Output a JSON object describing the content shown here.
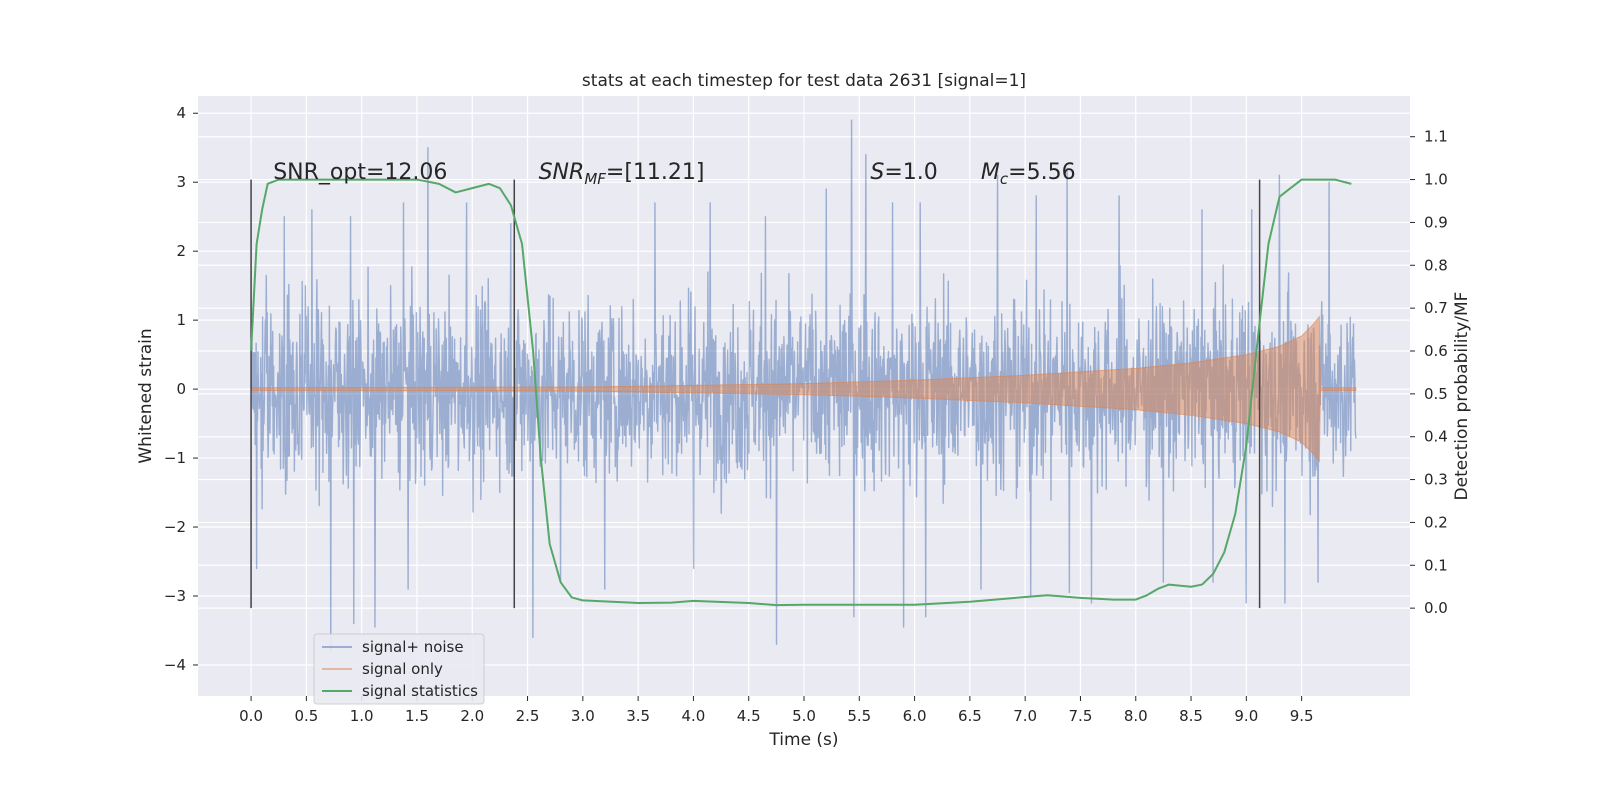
{
  "chart_data": {
    "type": "line",
    "title": "stats at each timestep for test data 2631 [signal=1]",
    "xlabel": "Time (s)",
    "ylabel": "Whitened strain",
    "y2label": "Detection probability/MF",
    "xlim": [
      -0.48,
      10.48
    ],
    "ylim": [
      -4.45,
      4.25
    ],
    "y2lim": [
      -0.205,
      1.195
    ],
    "grid": true,
    "x_ticks": [
      0.0,
      0.5,
      1.0,
      1.5,
      2.0,
      2.5,
      3.0,
      3.5,
      4.0,
      4.5,
      5.0,
      5.5,
      6.0,
      6.5,
      7.0,
      7.5,
      8.0,
      8.5,
      9.0,
      9.5
    ],
    "x_tick_labels": [
      "0.0",
      "0.5",
      "1.0",
      "1.5",
      "2.0",
      "2.5",
      "3.0",
      "3.5",
      "4.0",
      "4.5",
      "5.0",
      "5.5",
      "6.0",
      "6.5",
      "7.0",
      "7.5",
      "8.0",
      "8.5",
      "9.0",
      "9.5"
    ],
    "y_ticks": [
      4,
      3,
      2,
      1,
      0,
      -1,
      -2,
      -3,
      -4
    ],
    "y_tick_labels": [
      "4",
      "3",
      "2",
      "1",
      "0",
      "−1",
      "−2",
      "−3",
      "−4"
    ],
    "y2_ticks": [
      1.1,
      1.0,
      0.9,
      0.8,
      0.7,
      0.6,
      0.5,
      0.4,
      0.3,
      0.2,
      0.1,
      0.0
    ],
    "y2_tick_labels": [
      "1.1",
      "1.0",
      "0.9",
      "0.8",
      "0.7",
      "0.6",
      "0.5",
      "0.4",
      "0.3",
      "0.2",
      "0.1",
      "0.0"
    ],
    "legend_position": "lower-left",
    "series": [
      {
        "name": "signal+ noise",
        "axis": "left",
        "color": "#4c72b0",
        "opacity": 0.5,
        "x_range": [
          0.0,
          9.99
        ],
        "typical_band": [
          -1.9,
          1.9
        ],
        "peaks_high": [
          [
            0.3,
            2.5
          ],
          [
            0.55,
            2.6
          ],
          [
            0.9,
            2.5
          ],
          [
            1.38,
            2.7
          ],
          [
            1.6,
            3.5
          ],
          [
            1.95,
            2.7
          ],
          [
            2.35,
            2.4
          ],
          [
            3.2,
            2.9
          ],
          [
            3.65,
            2.7
          ],
          [
            4.15,
            2.7
          ],
          [
            4.65,
            2.5
          ],
          [
            5.2,
            2.9
          ],
          [
            5.43,
            3.9
          ],
          [
            5.56,
            3.4
          ],
          [
            5.8,
            2.7
          ],
          [
            6.05,
            2.7
          ],
          [
            6.75,
            3.1
          ],
          [
            7.1,
            2.8
          ],
          [
            7.38,
            3.2
          ],
          [
            7.85,
            2.8
          ],
          [
            8.6,
            2.6
          ],
          [
            9.05,
            2.6
          ],
          [
            9.3,
            3.1
          ],
          [
            9.75,
            3.0
          ]
        ],
        "peaks_low": [
          [
            0.05,
            -2.6
          ],
          [
            0.72,
            -3.8
          ],
          [
            0.93,
            -3.4
          ],
          [
            1.12,
            -3.45
          ],
          [
            1.42,
            -2.9
          ],
          [
            2.55,
            -3.6
          ],
          [
            2.8,
            -2.8
          ],
          [
            3.2,
            -2.9
          ],
          [
            4.0,
            -2.6
          ],
          [
            4.75,
            -3.7
          ],
          [
            5.45,
            -3.3
          ],
          [
            5.9,
            -3.45
          ],
          [
            6.1,
            -3.3
          ],
          [
            6.6,
            -2.9
          ],
          [
            7.05,
            -3.0
          ],
          [
            7.4,
            -2.95
          ],
          [
            7.6,
            -3.1
          ],
          [
            8.25,
            -2.8
          ],
          [
            8.7,
            -2.8
          ],
          [
            9.0,
            -3.1
          ],
          [
            9.35,
            -3.1
          ],
          [
            9.65,
            -2.8
          ]
        ]
      },
      {
        "name": "signal only",
        "axis": "left",
        "color": "#dd8452",
        "opacity": 0.5,
        "envelope": [
          [
            0.0,
            0.02
          ],
          [
            3.0,
            0.03
          ],
          [
            5.0,
            0.08
          ],
          [
            6.0,
            0.13
          ],
          [
            7.0,
            0.2
          ],
          [
            8.0,
            0.3
          ],
          [
            8.5,
            0.38
          ],
          [
            9.0,
            0.5
          ],
          [
            9.3,
            0.62
          ],
          [
            9.5,
            0.77
          ],
          [
            9.6,
            0.93
          ],
          [
            9.66,
            1.05
          ],
          [
            9.67,
            0.02
          ],
          [
            9.99,
            0.02
          ]
        ]
      },
      {
        "name": "signal statistics",
        "axis": "right",
        "color": "#55a868",
        "x": [
          0.0,
          0.05,
          0.1,
          0.15,
          0.25,
          0.5,
          1.0,
          1.5,
          1.7,
          1.85,
          2.0,
          2.15,
          2.25,
          2.35,
          2.45,
          2.55,
          2.62,
          2.7,
          2.8,
          2.9,
          3.0,
          3.5,
          3.8,
          4.0,
          4.5,
          4.75,
          5.0,
          5.5,
          6.0,
          6.5,
          7.0,
          7.2,
          7.5,
          7.8,
          8.0,
          8.1,
          8.2,
          8.3,
          8.5,
          8.6,
          8.7,
          8.8,
          8.9,
          9.0,
          9.1,
          9.2,
          9.3,
          9.5,
          9.8,
          9.95
        ],
        "y": [
          0.6,
          0.85,
          0.93,
          0.99,
          1.0,
          1.0,
          1.0,
          1.0,
          0.99,
          0.97,
          0.98,
          0.99,
          0.98,
          0.94,
          0.85,
          0.6,
          0.35,
          0.15,
          0.06,
          0.025,
          0.018,
          0.012,
          0.013,
          0.017,
          0.012,
          0.007,
          0.008,
          0.008,
          0.008,
          0.015,
          0.026,
          0.03,
          0.024,
          0.02,
          0.02,
          0.03,
          0.045,
          0.055,
          0.05,
          0.055,
          0.08,
          0.13,
          0.22,
          0.38,
          0.62,
          0.85,
          0.96,
          1.0,
          1.0,
          0.99
        ]
      }
    ],
    "vertical_lines": [
      0.0,
      2.38,
      9.12
    ],
    "annotations": [
      {
        "text": "SNR_opt=12.06",
        "x": 0.2,
        "y": 3.05
      },
      {
        "text": "SNR",
        "sub": "MF",
        "rest": "=[11.21]",
        "x": 2.6,
        "y": 3.05,
        "italic": true
      },
      {
        "text": "S",
        "rest": "=1.0",
        "x": 5.6,
        "y": 3.05,
        "italic": true
      },
      {
        "text": "M",
        "sub": "c",
        "rest": "=5.56",
        "x": 6.6,
        "y": 3.05,
        "italic": true
      }
    ]
  }
}
